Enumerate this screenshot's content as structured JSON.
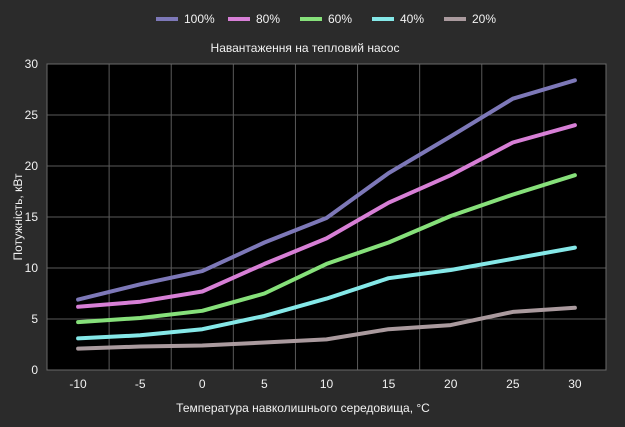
{
  "chart_data": {
    "type": "line",
    "title": "Навантаження на тепловий насос",
    "xlabel": "Температура навколишнього середовища, °C",
    "ylabel": "Потужність, кВт",
    "x": [
      -10,
      -5,
      0,
      5,
      10,
      15,
      20,
      25,
      30
    ],
    "xlim": [
      -12.5,
      32.5
    ],
    "ylim": [
      0,
      30
    ],
    "yticks": [
      0,
      5,
      10,
      15,
      20,
      25,
      30
    ],
    "grid": true,
    "legend_position": "top",
    "series": [
      {
        "name": "100%",
        "color": "#7d78b8",
        "values": [
          6.9,
          8.4,
          9.7,
          12.5,
          14.9,
          19.3,
          22.9,
          26.6,
          28.4
        ]
      },
      {
        "name": "80%",
        "color": "#d77fd6",
        "values": [
          6.2,
          6.7,
          7.7,
          10.4,
          12.9,
          16.4,
          19.1,
          22.3,
          24.0
        ]
      },
      {
        "name": "60%",
        "color": "#86e07a",
        "values": [
          4.7,
          5.1,
          5.8,
          7.5,
          10.4,
          12.5,
          15.1,
          17.2,
          19.1
        ]
      },
      {
        "name": "40%",
        "color": "#85e8e8",
        "values": [
          3.1,
          3.4,
          4.0,
          5.3,
          7.0,
          9.0,
          9.8,
          10.9,
          12.0
        ]
      },
      {
        "name": "20%",
        "color": "#aa9a9e",
        "values": [
          2.1,
          2.3,
          2.4,
          2.7,
          3.0,
          4.0,
          4.4,
          5.7,
          6.1
        ]
      }
    ]
  }
}
